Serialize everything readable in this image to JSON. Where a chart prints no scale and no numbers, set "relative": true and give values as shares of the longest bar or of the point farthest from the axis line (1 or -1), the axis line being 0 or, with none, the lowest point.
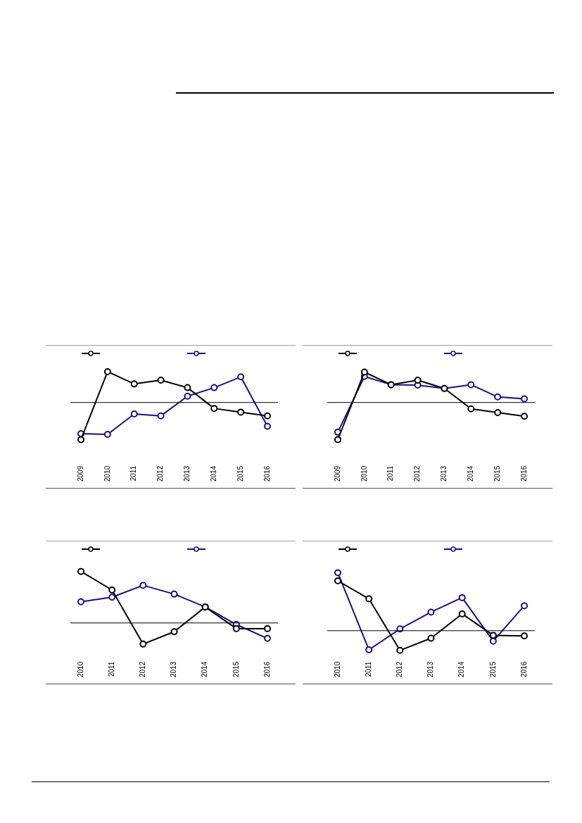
{
  "chart_data": [
    {
      "type": "line",
      "relative": true,
      "categories": [
        "2009",
        "2010",
        "2011",
        "2012",
        "2013",
        "2014",
        "2015",
        "2016"
      ],
      "marker": "circle",
      "series": [
        {
          "color": "#000000",
          "values": [
            -1,
            0.83,
            0.5,
            0.6,
            0.4,
            -0.16,
            -0.26,
            -0.36
          ]
        },
        {
          "color": "#1f0a8f",
          "values": [
            -0.84,
            -0.86,
            -0.31,
            -0.36,
            0.17,
            0.4,
            0.69,
            -0.64
          ]
        }
      ]
    },
    {
      "type": "line",
      "relative": true,
      "categories": [
        "2009",
        "2010",
        "2011",
        "2012",
        "2013",
        "2014",
        "2015",
        "2016"
      ],
      "marker": "circle",
      "series": [
        {
          "color": "#000000",
          "values": [
            -1,
            0.82,
            0.48,
            0.6,
            0.38,
            -0.17,
            -0.27,
            -0.37
          ]
        },
        {
          "color": "#1f0a8f",
          "values": [
            -0.8,
            0.7,
            0.48,
            0.47,
            0.38,
            0.48,
            0.15,
            0.1
          ]
        }
      ]
    },
    {
      "type": "line",
      "relative": true,
      "categories": [
        "2010",
        "2011",
        "2012",
        "2013",
        "2014",
        "2015",
        "2016"
      ],
      "marker": "circle",
      "series": [
        {
          "color": "#000000",
          "values": [
            1,
            0.64,
            -0.41,
            -0.17,
            0.31,
            -0.11,
            -0.11
          ]
        },
        {
          "color": "#1f0a8f",
          "values": [
            0.41,
            0.5,
            0.73,
            0.56,
            0.31,
            -0.03,
            -0.3
          ]
        }
      ]
    },
    {
      "type": "line",
      "relative": true,
      "categories": [
        "2010",
        "2011",
        "2012",
        "2013",
        "2014",
        "2015",
        "2016"
      ],
      "marker": "circle",
      "series": [
        {
          "color": "#000000",
          "values": [
            0.86,
            0.55,
            -0.34,
            -0.13,
            0.29,
            -0.08,
            -0.09
          ]
        },
        {
          "color": "#1f0a8f",
          "values": [
            1,
            -0.33,
            0.03,
            0.32,
            0.57,
            -0.18,
            0.43
          ]
        }
      ]
    }
  ]
}
